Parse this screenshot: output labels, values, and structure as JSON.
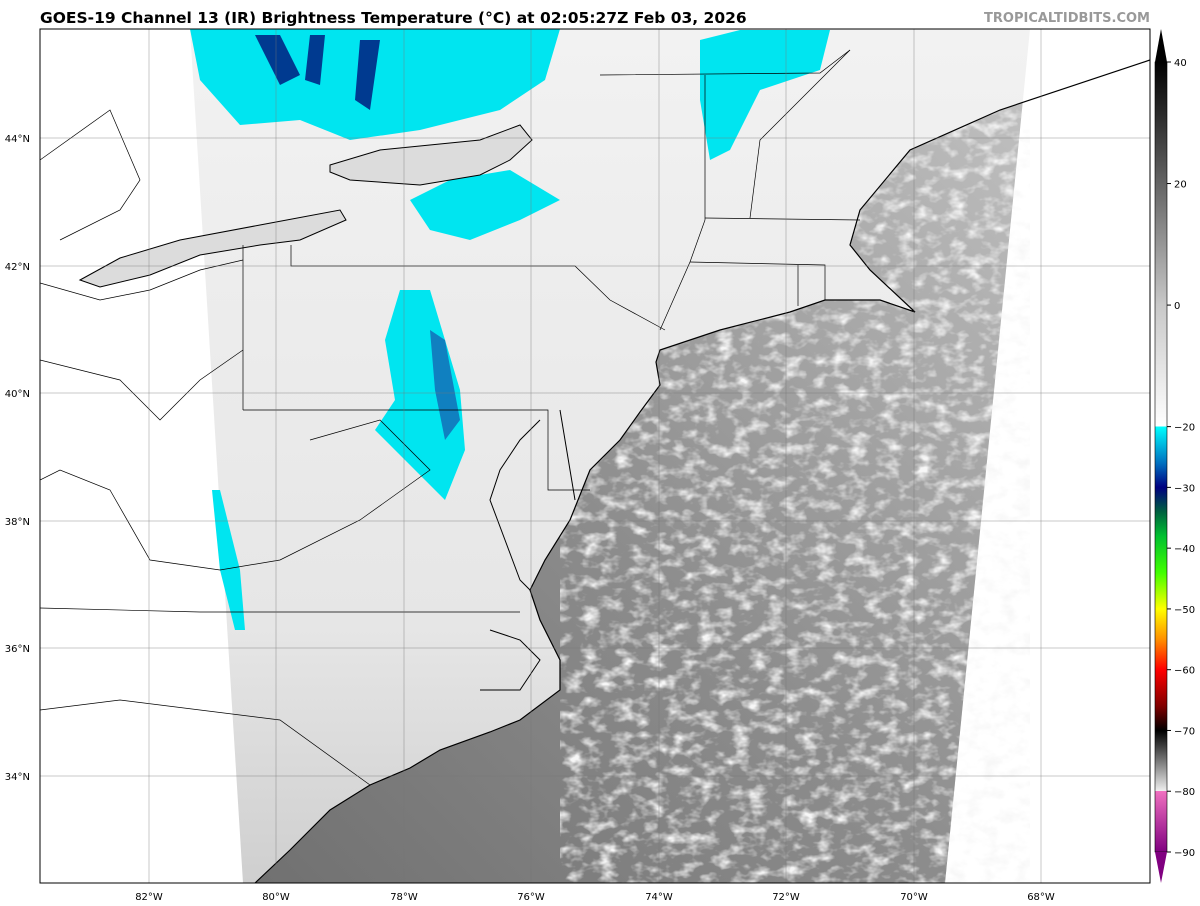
{
  "header": {
    "title": "GOES-19 Channel 13 (IR) Brightness Temperature (°C) at 02:05:27Z Feb 03, 2026",
    "site": "TROPICALTIDBITS.COM"
  },
  "map": {
    "longitude_labels": [
      "82°W",
      "80°W",
      "78°W",
      "76°W",
      "74°W",
      "72°W",
      "70°W",
      "68°W"
    ],
    "latitude_labels": [
      "44°N",
      "42°N",
      "40°N",
      "38°N",
      "36°N",
      "34°N"
    ],
    "colors": {
      "land": "#ececec",
      "ocean": "#a8a8a8",
      "cold_cloud": "#00e5f0",
      "border": "#000000"
    }
  },
  "colorbar": {
    "range": [
      -90,
      40
    ],
    "tick_labels": [
      "40",
      "20",
      "0",
      "−20",
      "−30",
      "−40",
      "−50",
      "−60",
      "−70",
      "−80",
      "−90"
    ],
    "stops": [
      {
        "value": 40,
        "color": "#000000"
      },
      {
        "value": 0,
        "color": "#c8c8c8"
      },
      {
        "value": -20,
        "color": "#ffffff"
      },
      {
        "value": -20,
        "color": "#00ffff"
      },
      {
        "value": -26,
        "color": "#0070c0"
      },
      {
        "value": -30,
        "color": "#000080"
      },
      {
        "value": -34,
        "color": "#006040"
      },
      {
        "value": -38,
        "color": "#00c030"
      },
      {
        "value": -44,
        "color": "#40ff00"
      },
      {
        "value": -50,
        "color": "#ffff00"
      },
      {
        "value": -55,
        "color": "#ff9000"
      },
      {
        "value": -60,
        "color": "#ff0000"
      },
      {
        "value": -66,
        "color": "#800000"
      },
      {
        "value": -70,
        "color": "#000000"
      },
      {
        "value": -80,
        "color": "#f0f0f0"
      },
      {
        "value": -80,
        "color": "#f070c0"
      },
      {
        "value": -90,
        "color": "#800080"
      }
    ]
  }
}
